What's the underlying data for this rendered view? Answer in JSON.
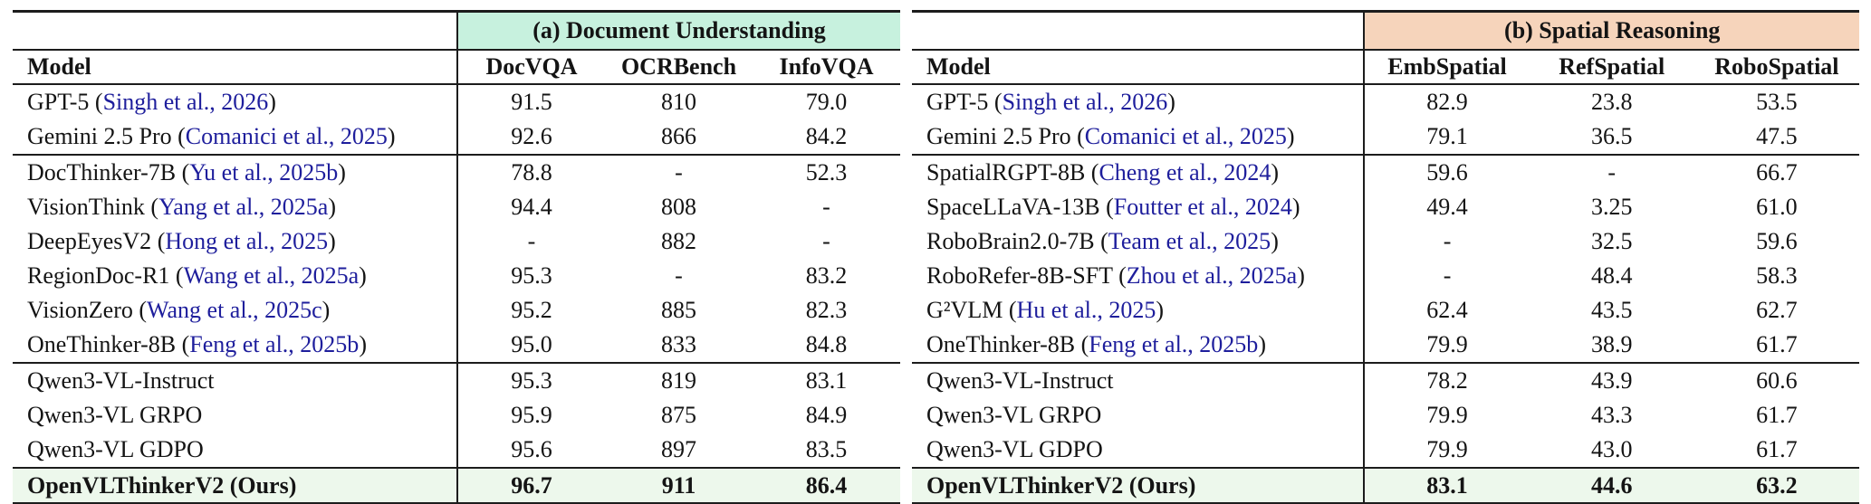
{
  "colors": {
    "rule": "#1c1c1c",
    "citation_text": "#1e1e9c",
    "ours_row_bg": "#edf8ec"
  },
  "tables": [
    {
      "id": "document-understanding",
      "caption": "(a) Document Understanding",
      "accent_color": "#c7f1de",
      "model_header": "Model",
      "columns": [
        "DocVQA",
        "OCRBench",
        "InfoVQA"
      ],
      "rows": [
        {
          "model": "GPT-5",
          "citation": "Singh et al., 2026",
          "values": [
            "91.5",
            "810",
            "79.0"
          ]
        },
        {
          "model": "Gemini 2.5 Pro",
          "citation": "Comanici et al., 2025",
          "values": [
            "92.6",
            "866",
            "84.2"
          ]
        },
        {
          "model": "DocThinker-7B",
          "citation": "Yu et al., 2025b",
          "values": [
            "78.8",
            "-",
            "52.3"
          ],
          "rule_above": true
        },
        {
          "model": "VisionThink",
          "citation": "Yang et al., 2025a",
          "values": [
            "94.4",
            "808",
            "-"
          ]
        },
        {
          "model": "DeepEyesV2",
          "citation": "Hong et al., 2025",
          "values": [
            "-",
            "882",
            "-"
          ]
        },
        {
          "model": "RegionDoc-R1",
          "citation": "Wang et al., 2025a",
          "values": [
            "95.3",
            "-",
            "83.2"
          ]
        },
        {
          "model": "VisionZero",
          "citation": "Wang et al., 2025c",
          "values": [
            "95.2",
            "885",
            "82.3"
          ]
        },
        {
          "model": "OneThinker-8B",
          "citation": "Feng et al., 2025b",
          "values": [
            "95.0",
            "833",
            "84.8"
          ]
        },
        {
          "model": "Qwen3-VL-Instruct",
          "values": [
            "95.3",
            "819",
            "83.1"
          ],
          "rule_above": true
        },
        {
          "model": "Qwen3-VL GRPO",
          "values": [
            "95.9",
            "875",
            "84.9"
          ]
        },
        {
          "model": "Qwen3-VL GDPO",
          "values": [
            "95.6",
            "897",
            "83.5"
          ]
        },
        {
          "model": "OpenVLThinkerV2 (Ours)",
          "values": [
            "96.7",
            "911",
            "86.4"
          ],
          "rule_above": true,
          "highlight": true
        }
      ]
    },
    {
      "id": "spatial-reasoning",
      "caption": "(b) Spatial Reasoning",
      "accent_color": "#f6d4bb",
      "model_header": "Model",
      "columns": [
        "EmbSpatial",
        "RefSpatial",
        "RoboSpatial"
      ],
      "rows": [
        {
          "model": "GPT-5",
          "citation": "Singh et al., 2026",
          "values": [
            "82.9",
            "23.8",
            "53.5"
          ]
        },
        {
          "model": "Gemini 2.5 Pro",
          "citation": "Comanici et al., 2025",
          "values": [
            "79.1",
            "36.5",
            "47.5"
          ]
        },
        {
          "model": "SpatialRGPT-8B",
          "citation": "Cheng et al., 2024",
          "values": [
            "59.6",
            "-",
            "66.7"
          ],
          "rule_above": true
        },
        {
          "model": "SpaceLLaVA-13B",
          "citation": "Foutter et al., 2024",
          "values": [
            "49.4",
            "3.25",
            "61.0"
          ]
        },
        {
          "model": "RoboBrain2.0-7B",
          "citation": "Team et al., 2025",
          "values": [
            "-",
            "32.5",
            "59.6"
          ]
        },
        {
          "model": "RoboRefer-8B-SFT",
          "citation": "Zhou et al., 2025a",
          "values": [
            "-",
            "48.4",
            "58.3"
          ]
        },
        {
          "model": "G²VLM",
          "citation": "Hu et al., 2025",
          "values": [
            "62.4",
            "43.5",
            "62.7"
          ]
        },
        {
          "model": "OneThinker-8B",
          "citation": "Feng et al., 2025b",
          "values": [
            "79.9",
            "38.9",
            "61.7"
          ]
        },
        {
          "model": "Qwen3-VL-Instruct",
          "values": [
            "78.2",
            "43.9",
            "60.6"
          ],
          "rule_above": true
        },
        {
          "model": "Qwen3-VL GRPO",
          "values": [
            "79.9",
            "43.3",
            "61.7"
          ]
        },
        {
          "model": "Qwen3-VL GDPO",
          "values": [
            "79.9",
            "43.0",
            "61.7"
          ]
        },
        {
          "model": "OpenVLThinkerV2 (Ours)",
          "values": [
            "83.1",
            "44.6",
            "63.2"
          ],
          "rule_above": true,
          "highlight": true
        }
      ]
    }
  ]
}
